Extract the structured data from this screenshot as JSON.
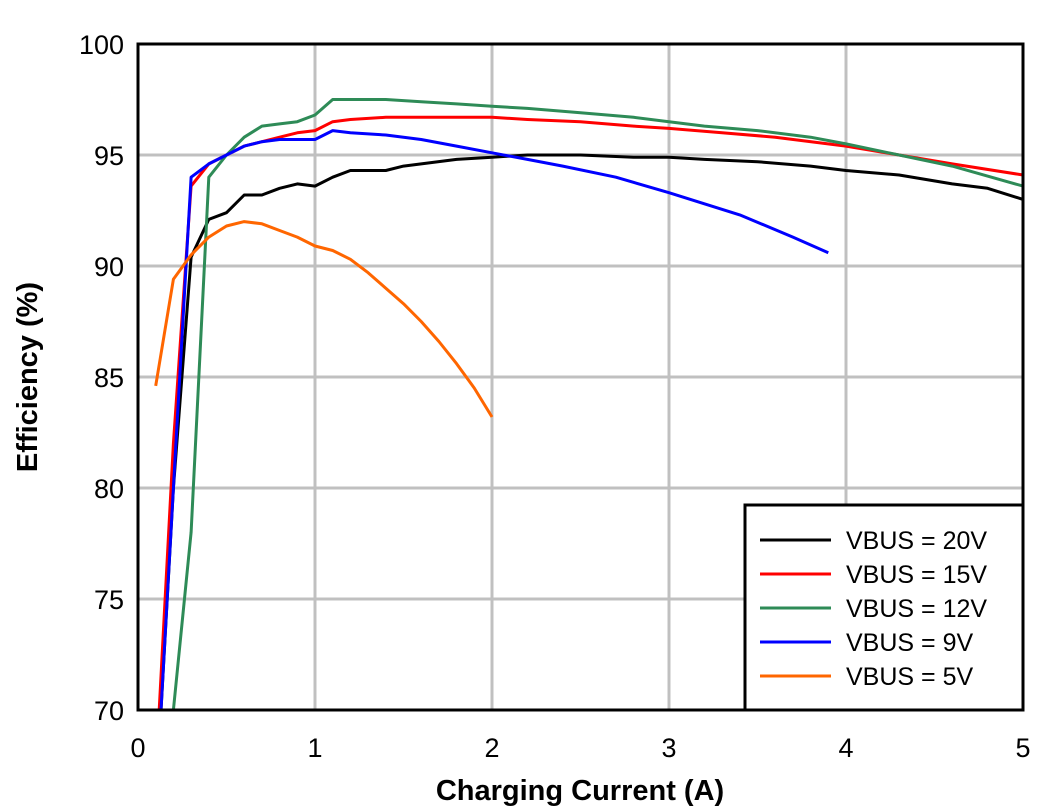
{
  "chart_data": {
    "type": "line",
    "title": "",
    "xlabel": "Charging Current (A)",
    "ylabel": "Efficiency (%)",
    "xlim": [
      0,
      5
    ],
    "ylim": [
      70,
      100
    ],
    "xticks": [
      0,
      1,
      2,
      3,
      4,
      5
    ],
    "yticks": [
      70,
      75,
      80,
      85,
      90,
      95,
      100
    ],
    "grid": true,
    "legend_position": "lower right",
    "series": [
      {
        "name": "VBUS = 20V",
        "color": "#000000",
        "x": [
          0.13,
          0.2,
          0.3,
          0.4,
          0.5,
          0.6,
          0.7,
          0.8,
          0.9,
          1.0,
          1.1,
          1.2,
          1.4,
          1.5,
          1.6,
          1.8,
          2.0,
          2.2,
          2.5,
          2.8,
          3.0,
          3.2,
          3.5,
          3.8,
          4.0,
          4.3,
          4.6,
          4.8,
          5.0
        ],
        "y": [
          70,
          80,
          90.4,
          92.1,
          92.4,
          93.2,
          93.2,
          93.5,
          93.7,
          93.6,
          94.0,
          94.3,
          94.3,
          94.5,
          94.6,
          94.8,
          94.9,
          95.0,
          95.0,
          94.9,
          94.9,
          94.8,
          94.7,
          94.5,
          94.3,
          94.1,
          93.7,
          93.5,
          93.0
        ]
      },
      {
        "name": "VBUS = 15V",
        "color": "#ff0000",
        "x": [
          0.12,
          0.2,
          0.3,
          0.4,
          0.5,
          0.6,
          0.7,
          0.8,
          0.9,
          1.0,
          1.1,
          1.2,
          1.4,
          1.6,
          1.8,
          2.0,
          2.2,
          2.5,
          2.8,
          3.0,
          3.3,
          3.6,
          4.0,
          4.3,
          4.6,
          5.0
        ],
        "y": [
          70,
          82,
          93.6,
          94.6,
          95.0,
          95.4,
          95.6,
          95.8,
          96.0,
          96.1,
          96.5,
          96.6,
          96.7,
          96.7,
          96.7,
          96.7,
          96.6,
          96.5,
          96.3,
          96.2,
          96.0,
          95.8,
          95.4,
          95.0,
          94.6,
          94.1
        ]
      },
      {
        "name": "VBUS = 12V",
        "color": "#2e8b57",
        "x": [
          0.2,
          0.3,
          0.4,
          0.5,
          0.6,
          0.7,
          0.8,
          0.9,
          1.0,
          1.1,
          1.2,
          1.4,
          1.6,
          1.8,
          2.0,
          2.2,
          2.5,
          2.8,
          3.0,
          3.2,
          3.5,
          3.8,
          4.0,
          4.3,
          4.6,
          5.0
        ],
        "y": [
          70,
          78,
          94.0,
          95.0,
          95.8,
          96.3,
          96.4,
          96.5,
          96.8,
          97.5,
          97.5,
          97.5,
          97.4,
          97.3,
          97.2,
          97.1,
          96.9,
          96.7,
          96.5,
          96.3,
          96.1,
          95.8,
          95.5,
          95.0,
          94.5,
          93.6
        ]
      },
      {
        "name": "VBUS = 9V",
        "color": "#0000ff",
        "x": [
          0.13,
          0.2,
          0.3,
          0.4,
          0.5,
          0.6,
          0.7,
          0.8,
          0.9,
          1.0,
          1.1,
          1.2,
          1.4,
          1.6,
          1.8,
          2.0,
          2.2,
          2.4,
          2.7,
          3.0,
          3.2,
          3.4,
          3.7,
          3.9
        ],
        "y": [
          70,
          80,
          94.0,
          94.6,
          95.0,
          95.4,
          95.6,
          95.7,
          95.7,
          95.7,
          96.1,
          96.0,
          95.9,
          95.7,
          95.4,
          95.1,
          94.8,
          94.5,
          94.0,
          93.3,
          92.8,
          92.3,
          91.3,
          90.6
        ]
      },
      {
        "name": "VBUS = 5V",
        "color": "#ff6600",
        "x": [
          0.1,
          0.2,
          0.3,
          0.4,
          0.5,
          0.6,
          0.7,
          0.8,
          0.9,
          1.0,
          1.1,
          1.2,
          1.3,
          1.4,
          1.5,
          1.6,
          1.7,
          1.8,
          1.9,
          2.0
        ],
        "y": [
          84.6,
          89.4,
          90.5,
          91.3,
          91.8,
          92.0,
          91.9,
          91.6,
          91.3,
          90.9,
          90.7,
          90.3,
          89.7,
          89.0,
          88.3,
          87.5,
          86.6,
          85.6,
          84.5,
          83.2
        ]
      }
    ]
  }
}
